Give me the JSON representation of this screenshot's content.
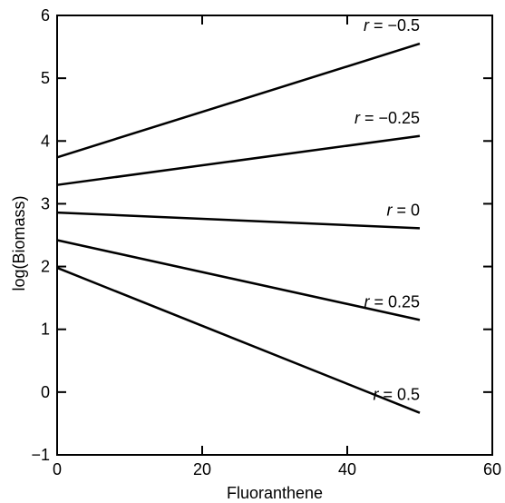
{
  "chart_data": {
    "type": "line",
    "title": "",
    "xlabel": "Fluoranthene",
    "ylabel": "log(Biomass)",
    "xlim": [
      0,
      60
    ],
    "ylim": [
      -1,
      6
    ],
    "xticks": [
      0,
      20,
      40,
      60
    ],
    "yticks": [
      -1,
      0,
      1,
      2,
      3,
      4,
      5,
      6
    ],
    "grid": false,
    "series": [
      {
        "name": "r = −0.5",
        "r_symbol": "r",
        "r_value": "= −0.5",
        "x": [
          0,
          50
        ],
        "y": [
          3.74,
          5.55
        ]
      },
      {
        "name": "r = −0.25",
        "r_symbol": "r",
        "r_value": "= −0.25",
        "x": [
          0,
          50
        ],
        "y": [
          3.3,
          4.08
        ]
      },
      {
        "name": "r = 0",
        "r_symbol": "r",
        "r_value": "= 0",
        "x": [
          0,
          50
        ],
        "y": [
          2.86,
          2.61
        ]
      },
      {
        "name": "r = 0.25",
        "r_symbol": "r",
        "r_value": "= 0.25",
        "x": [
          0,
          50
        ],
        "y": [
          2.42,
          1.15
        ]
      },
      {
        "name": "r = 0.5",
        "r_symbol": "r",
        "r_value": "= 0.5",
        "x": [
          0,
          50
        ],
        "y": [
          1.98,
          -0.33
        ]
      }
    ]
  }
}
